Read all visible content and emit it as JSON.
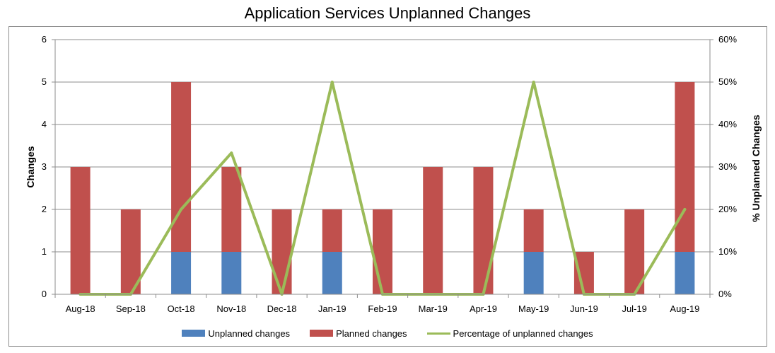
{
  "chart_data": {
    "type": "bar",
    "title": "Application Services Unplanned Changes",
    "categories": [
      "Aug-18",
      "Sep-18",
      "Oct-18",
      "Nov-18",
      "Dec-18",
      "Jan-19",
      "Feb-19",
      "Mar-19",
      "Apr-19",
      "May-19",
      "Jun-19",
      "Jul-19",
      "Aug-19"
    ],
    "series": [
      {
        "name": "Unplanned changes",
        "type": "bar",
        "stacked": true,
        "axis": "left",
        "color": "#4f81bd",
        "values": [
          0,
          0,
          1,
          1,
          0,
          1,
          0,
          0,
          0,
          1,
          0,
          0,
          1
        ]
      },
      {
        "name": "Planned changes",
        "type": "bar",
        "stacked": true,
        "axis": "left",
        "color": "#c0504d",
        "values": [
          3,
          2,
          4,
          2,
          2,
          1,
          2,
          3,
          3,
          1,
          1,
          2,
          4
        ]
      },
      {
        "name": "Percentage of unplanned changes",
        "type": "line",
        "axis": "right",
        "color": "#9bbb59",
        "values": [
          0,
          0,
          20,
          33.3,
          0,
          50,
          0,
          0,
          0,
          50,
          0,
          0,
          20
        ]
      }
    ],
    "ylabel": "Changes",
    "ylim": [
      0,
      6
    ],
    "yticks": [
      "0",
      "1",
      "2",
      "3",
      "4",
      "5",
      "6"
    ],
    "y2label": "% Unplanned Changes",
    "y2lim": [
      0,
      60
    ],
    "y2ticks": [
      "0%",
      "10%",
      "20%",
      "30%",
      "40%",
      "50%",
      "60%"
    ],
    "grid": true,
    "legend_position": "bottom"
  }
}
